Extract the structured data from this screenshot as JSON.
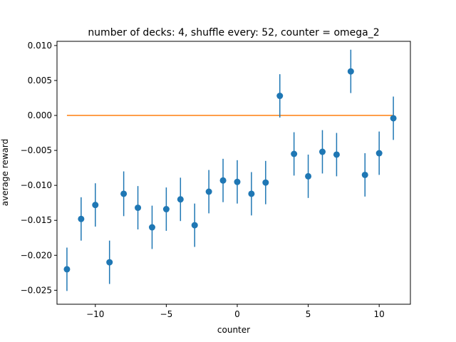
{
  "chart_data": {
    "type": "scatter",
    "title": "number of decks: 4, shuffle every: 52, counter = omega_2",
    "xlabel": "counter",
    "ylabel": "average reward",
    "xlim": [
      -12.7,
      12.2
    ],
    "ylim": [
      -0.027,
      0.0106
    ],
    "xticks": [
      -10,
      -5,
      0,
      5,
      10
    ],
    "xtick_labels": [
      "−10",
      "−5",
      "0",
      "5",
      "10"
    ],
    "yticks": [
      -0.025,
      -0.02,
      -0.015,
      -0.01,
      -0.005,
      0.0,
      0.005,
      0.01
    ],
    "ytick_labels": [
      "−0.025",
      "−0.020",
      "−0.015",
      "−0.010",
      "−0.005",
      "0.000",
      "0.005",
      "0.010"
    ],
    "grid": false,
    "series": [
      {
        "type": "errorbar",
        "color": "#1f77b4",
        "x": [
          -12,
          -11,
          -10,
          -9,
          -8,
          -7,
          -6,
          -5,
          -4,
          -3,
          -2,
          -1,
          0,
          1,
          2,
          3,
          4,
          5,
          6,
          7,
          8,
          9,
          10,
          11
        ],
        "y": [
          -0.022,
          -0.0148,
          -0.0128,
          -0.021,
          -0.0112,
          -0.0132,
          -0.016,
          -0.0134,
          -0.012,
          -0.0157,
          -0.0109,
          -0.0093,
          -0.0095,
          -0.0112,
          -0.0096,
          0.0028,
          -0.0055,
          -0.0087,
          -0.0052,
          -0.0056,
          0.0063,
          -0.0085,
          -0.0054,
          -0.0004
        ],
        "err": [
          0.0031,
          0.0031,
          0.0031,
          0.0031,
          0.0032,
          0.0031,
          0.0031,
          0.0031,
          0.0031,
          0.0031,
          0.0031,
          0.0031,
          0.0031,
          0.0031,
          0.0031,
          0.0031,
          0.0031,
          0.0031,
          0.0031,
          0.0031,
          0.0031,
          0.0031,
          0.0031,
          0.0031
        ]
      },
      {
        "type": "line",
        "color": "#ff7f0e",
        "x": [
          -12,
          11
        ],
        "y": [
          0.0,
          0.0
        ]
      }
    ]
  }
}
